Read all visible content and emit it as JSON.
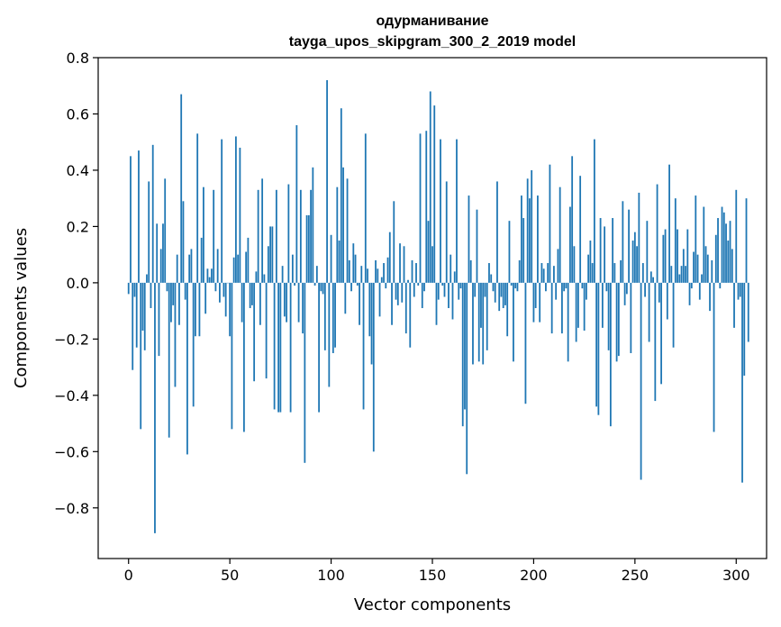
{
  "chart_data": {
    "type": "bar",
    "title_line1": "одурманивание",
    "title_line2": "tayga_upos_skipgram_300_2_2019 model",
    "xlabel": "Vector components",
    "ylabel": "Components values",
    "xlim": [
      -15,
      315
    ],
    "ylim": [
      -0.98,
      0.8
    ],
    "xticks": [
      0,
      50,
      100,
      150,
      200,
      250,
      300
    ],
    "xtick_labels": [
      "0",
      "50",
      "100",
      "150",
      "200",
      "250",
      "300"
    ],
    "yticks": [
      -0.8,
      -0.6,
      -0.4,
      -0.2,
      0.0,
      0.2,
      0.4,
      0.6,
      0.8
    ],
    "ytick_labels": [
      "−0.8",
      "−0.6",
      "−0.4",
      "−0.2",
      "0.0",
      "0.2",
      "0.4",
      "0.6",
      "0.8"
    ],
    "bar_color": "#1f77b4",
    "grid": false,
    "values": [
      -0.04,
      0.45,
      -0.31,
      -0.05,
      -0.23,
      0.47,
      -0.52,
      -0.17,
      -0.24,
      0.03,
      0.36,
      -0.09,
      0.49,
      -0.89,
      0.21,
      -0.26,
      0.12,
      0.21,
      0.37,
      -0.03,
      -0.55,
      -0.14,
      -0.08,
      -0.37,
      0.1,
      -0.15,
      0.67,
      0.29,
      -0.06,
      -0.61,
      0.1,
      0.12,
      -0.44,
      -0.19,
      0.53,
      -0.19,
      0.16,
      0.34,
      -0.11,
      0.05,
      0.02,
      0.05,
      0.33,
      -0.03,
      0.12,
      -0.07,
      0.51,
      -0.05,
      -0.12,
      0.0,
      -0.19,
      -0.52,
      0.09,
      0.52,
      0.1,
      0.48,
      -0.14,
      -0.53,
      0.11,
      0.16,
      -0.09,
      -0.08,
      -0.35,
      0.04,
      0.33,
      -0.15,
      0.37,
      0.03,
      -0.34,
      0.13,
      0.2,
      0.2,
      -0.45,
      0.33,
      -0.46,
      -0.46,
      0.06,
      -0.12,
      -0.14,
      0.35,
      -0.46,
      0.1,
      -0.01,
      0.56,
      -0.14,
      0.33,
      -0.18,
      -0.64,
      0.24,
      0.24,
      0.33,
      0.41,
      -0.01,
      0.06,
      -0.46,
      -0.03,
      -0.04,
      -0.24,
      0.72,
      -0.37,
      0.17,
      -0.25,
      -0.23,
      0.34,
      0.15,
      0.62,
      0.41,
      -0.11,
      0.37,
      0.08,
      -0.03,
      0.14,
      0.1,
      -0.01,
      -0.15,
      0.06,
      -0.45,
      0.53,
      0.05,
      -0.19,
      -0.29,
      -0.6,
      0.08,
      0.05,
      -0.12,
      0.02,
      0.07,
      -0.02,
      0.09,
      0.18,
      -0.15,
      0.29,
      -0.06,
      -0.08,
      0.14,
      -0.07,
      0.13,
      -0.18,
      0.01,
      -0.23,
      0.08,
      -0.05,
      0.07,
      -0.01,
      0.53,
      -0.09,
      -0.03,
      0.54,
      0.22,
      0.68,
      0.13,
      0.63,
      -0.15,
      -0.06,
      0.51,
      -0.01,
      -0.05,
      0.36,
      -0.09,
      0.1,
      -0.13,
      0.04,
      0.51,
      -0.06,
      -0.02,
      -0.51,
      -0.45,
      -0.68,
      0.31,
      0.08,
      -0.29,
      -0.05,
      0.26,
      -0.28,
      -0.16,
      -0.29,
      -0.05,
      -0.24,
      0.07,
      0.03,
      -0.03,
      -0.07,
      0.36,
      -0.1,
      -0.05,
      -0.09,
      -0.08,
      -0.19,
      0.22,
      -0.01,
      -0.28,
      -0.02,
      -0.03,
      0.08,
      0.31,
      0.23,
      -0.43,
      0.37,
      0.3,
      0.4,
      -0.14,
      -0.09,
      0.31,
      -0.14,
      0.07,
      0.05,
      -0.03,
      0.07,
      0.42,
      -0.18,
      0.06,
      -0.06,
      0.12,
      0.34,
      -0.18,
      -0.03,
      -0.02,
      -0.28,
      0.27,
      0.45,
      0.13,
      -0.21,
      -0.16,
      0.38,
      -0.02,
      -0.17,
      -0.06,
      0.1,
      0.15,
      0.07,
      0.51,
      -0.44,
      -0.47,
      0.23,
      -0.16,
      0.2,
      -0.03,
      -0.24,
      -0.51,
      0.23,
      0.07,
      -0.28,
      -0.26,
      0.08,
      0.29,
      -0.08,
      -0.04,
      0.26,
      -0.25,
      0.15,
      0.18,
      0.13,
      0.32,
      -0.7,
      0.07,
      -0.05,
      0.22,
      -0.21,
      0.04,
      0.02,
      -0.42,
      0.35,
      -0.07,
      -0.36,
      0.17,
      0.19,
      -0.13,
      0.42,
      0.06,
      -0.23,
      0.3,
      0.19,
      0.03,
      0.06,
      0.12,
      0.06,
      0.19,
      -0.08,
      -0.02,
      0.11,
      0.31,
      0.1,
      -0.06,
      0.03,
      0.27,
      0.13,
      0.1,
      -0.1,
      0.08,
      -0.53,
      0.17,
      0.23,
      -0.02,
      0.27,
      0.25,
      0.21,
      0.15,
      0.22,
      0.12,
      -0.16,
      0.33,
      -0.06,
      -0.05,
      -0.71,
      -0.33,
      0.3,
      -0.21
    ]
  }
}
